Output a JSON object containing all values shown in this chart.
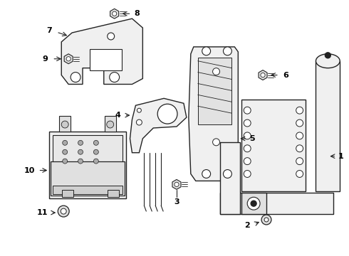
{
  "background_color": "#ffffff",
  "line_color": "#222222",
  "fig_width": 4.9,
  "fig_height": 3.6,
  "dpi": 100
}
